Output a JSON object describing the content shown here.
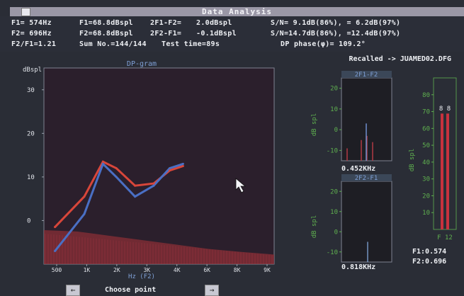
{
  "window": {
    "title": "Data Analysis"
  },
  "header": {
    "row1": [
      "F1= 574Hz",
      "F1=68.8dBspl",
      "2F1-F2=",
      "2.0dBspl",
      "S/N= 9.1dB(86%), = 6.2dB(97%)"
    ],
    "row2": [
      "F2= 696Hz",
      "F2=68.8dBspl",
      "2F2-F1=",
      "-0.1dBspl",
      "S/N=14.7dB(86%), =12.4dB(97%)"
    ],
    "row3": [
      "F2/F1=1.21",
      "Sum No.=144/144",
      "Test time=89s",
      "DP phase(φ)= 109.2°"
    ]
  },
  "recalled": "Recalled -> JUAMED02.DFG",
  "main_chart": {
    "title": "DP-gram",
    "ylabel": "dBspl",
    "xlabel": "Hz (F2)",
    "yticks": [
      "30",
      "20",
      "10",
      "0"
    ],
    "xticks": [
      "500",
      "1K",
      "2K",
      "3K",
      "4K",
      "6K",
      "8K",
      "9K"
    ],
    "colors": {
      "dp": "#d8463a",
      "noise": "#4a6fc4",
      "floor": "#8a2f36"
    }
  },
  "chart_data": {
    "type": "line",
    "title": "DP-gram",
    "ylabel": "dBspl",
    "xlabel": "Hz (F2)",
    "categories": [
      "500",
      "1K",
      "2K",
      "3K",
      "4K",
      "6K",
      "8K",
      "9K"
    ],
    "ylim": [
      -10,
      35
    ],
    "series": [
      {
        "x": [
          0.2,
          1.3,
          2.0,
          2.5,
          3.2,
          3.9,
          4.5,
          5.0
        ],
        "values": [
          -1.5,
          5.5,
          13.5,
          12.0,
          8.0,
          8.5,
          11.5,
          12.5
        ]
      },
      {
        "x": [
          0.2,
          1.3,
          2.0,
          2.5,
          3.2,
          3.9,
          4.5,
          5.0
        ],
        "values": [
          -7.0,
          1.5,
          13.0,
          10.0,
          5.5,
          8.0,
          12.0,
          13.0
        ]
      }
    ]
  },
  "side_chart_1": {
    "title": "2F1-F2",
    "ylabel": "dB spl",
    "yticks": [
      "20",
      "10",
      "0",
      "-10"
    ],
    "freq": "0.452KHz",
    "chart_data": {
      "type": "bar",
      "values": [
        -9,
        -5,
        -3,
        3,
        -6
      ]
    }
  },
  "side_chart_2": {
    "title": "2F2-F1",
    "ylabel": "dB spl",
    "yticks": [
      "20",
      "10",
      "0",
      "-10"
    ],
    "freq": "0.818KHz",
    "chart_data": {
      "type": "bar",
      "values": [
        -5
      ]
    }
  },
  "side_chart_3": {
    "ylabel": "dB spl",
    "yticks": [
      "80",
      "70",
      "60",
      "50",
      "40",
      "30",
      "20",
      "10"
    ],
    "col_labels": "F 12",
    "marker": "8 8",
    "chart_data": {
      "type": "bar",
      "categories": [
        "F1",
        "F2"
      ],
      "values": [
        68.8,
        68.8
      ]
    }
  },
  "footer": {
    "prev_label": "←",
    "next_label": "→",
    "choose_label": "Choose point",
    "f1_value": "F1:0.574",
    "f2_value": "F2:0.696"
  }
}
